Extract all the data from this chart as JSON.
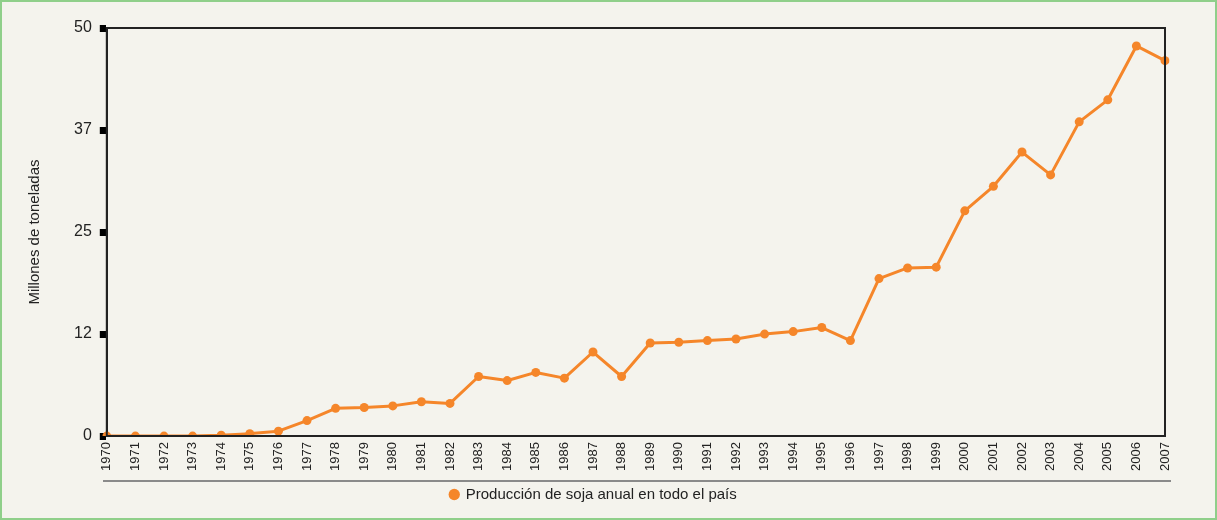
{
  "chart_data": {
    "type": "line",
    "ylabel": "Millones de toneladas",
    "categories": [
      "1970",
      "1971",
      "1972",
      "1973",
      "1974",
      "1975",
      "1976",
      "1977",
      "1978",
      "1979",
      "1980",
      "1981",
      "1982",
      "1983",
      "1984",
      "1985",
      "1986",
      "1987",
      "1988",
      "1989",
      "1990",
      "1991",
      "1992",
      "1993",
      "1994",
      "1995",
      "1996",
      "1997",
      "1998",
      "1999",
      "2000",
      "2001",
      "2002",
      "2003",
      "2004",
      "2005",
      "2006",
      "2007"
    ],
    "series": [
      {
        "name": "Producción de soja anual en todo el país",
        "color": "#f5862a",
        "values": [
          0,
          0,
          0,
          0,
          0.1,
          0.3,
          0.6,
          1.9,
          3.4,
          3.5,
          3.7,
          4.2,
          4.0,
          7.3,
          6.8,
          7.8,
          7.1,
          10.3,
          7.3,
          11.4,
          11.5,
          11.7,
          11.9,
          12.5,
          12.8,
          13.3,
          11.7,
          19.3,
          20.6,
          20.7,
          27.6,
          30.6,
          34.8,
          32.0,
          38.5,
          41.2,
          47.8,
          46.0
        ]
      }
    ],
    "ylim": [
      0,
      50
    ],
    "yticks": [
      0,
      {
        "value": 12.5,
        "label": "12"
      },
      25,
      {
        "value": 37.5,
        "label": "37"
      },
      50
    ],
    "grid": false,
    "legend": "bottom",
    "marker": "circle",
    "line_style": "solid"
  }
}
